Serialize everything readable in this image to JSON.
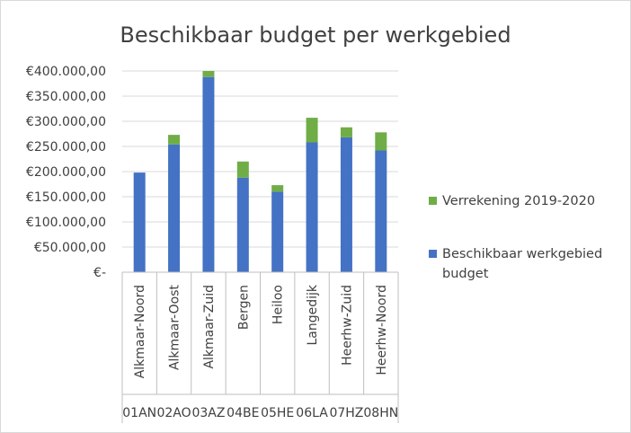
{
  "chart_data": {
    "type": "bar",
    "stacked": true,
    "title": "Beschikbaar budget per werkgebied",
    "xlabel": "",
    "ylabel": "",
    "ylim": [
      0,
      400000
    ],
    "y_ticks": [
      {
        "value": 400000,
        "label": "€400.000,00"
      },
      {
        "value": 350000,
        "label": "€350.000,00"
      },
      {
        "value": 300000,
        "label": "€300.000,00"
      },
      {
        "value": 250000,
        "label": "€250.000,00"
      },
      {
        "value": 200000,
        "label": "€200.000,00"
      },
      {
        "value": 150000,
        "label": "€150.000,00"
      },
      {
        "value": 100000,
        "label": "€100.000,00"
      },
      {
        "value": 50000,
        "label": "€50.000,00"
      },
      {
        "value": 0,
        "label": "€-"
      }
    ],
    "categories": [
      "Alkmaar-Noord",
      "Alkmaar-Oost",
      "Alkmaar-Zuid",
      "Bergen",
      "Heiloo",
      "Langedijk",
      "Heerhw-Zuid",
      "Heerhw-Noord"
    ],
    "codes": [
      "01AN",
      "02AO",
      "03AZ",
      "04BE",
      "05HE",
      "06LA",
      "07HZ",
      "08HN"
    ],
    "series": [
      {
        "name": "Beschikbaar werkgebied budget",
        "color": "#4472C4",
        "values": [
          198000,
          254000,
          388000,
          188000,
          160000,
          258000,
          268000,
          242000
        ]
      },
      {
        "name": "Verrekening 2019-2020",
        "color": "#70AD47",
        "values": [
          0,
          19000,
          12000,
          32000,
          13000,
          49000,
          20000,
          36000
        ]
      }
    ],
    "legend": {
      "placement": "right",
      "entries": [
        {
          "series": 1,
          "lines": [
            "Verrekening 2019-2020"
          ]
        },
        {
          "series": 0,
          "lines": [
            "Beschikbaar werkgebied",
            "budget"
          ]
        }
      ]
    },
    "grid": true
  }
}
